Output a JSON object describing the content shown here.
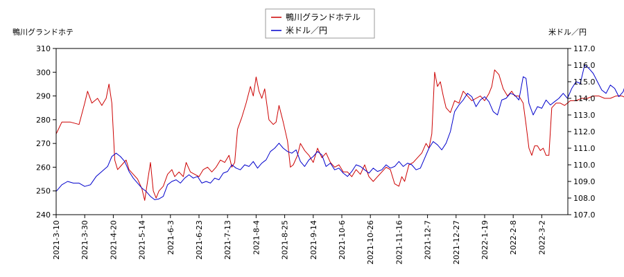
{
  "chart_data": {
    "type": "line",
    "legend_position": "top-center",
    "grid": false,
    "x_ticks": [
      "2021-3-10",
      "2021-3-30",
      "2021-4-20",
      "2021-5-14",
      "2021-6-3",
      "2021-6-23",
      "2021-7-13",
      "2021-8-4",
      "2021-8-25",
      "2021-9-14",
      "2021-10-6",
      "2021-10-26",
      "2021-11-16",
      "2021-12-7",
      "2021-12-27",
      "2022-1-19",
      "2022-2-8",
      "2022-3-2"
    ],
    "left_axis": {
      "label": "鴨川グランドホテ",
      "ylim": [
        240,
        310
      ],
      "ticks": [
        240,
        250,
        260,
        270,
        280,
        290,
        300,
        310
      ]
    },
    "right_axis": {
      "label": "米ドル／円",
      "ylim": [
        107.0,
        117.0
      ],
      "ticks": [
        "107.0",
        "108.0",
        "109.0",
        "110.0",
        "111.0",
        "112.0",
        "113.0",
        "114.0",
        "115.0",
        "116.0",
        "117.0"
      ]
    },
    "series": [
      {
        "name": "鴨川グランドホテル",
        "color": "#cc0000",
        "axis": "left",
        "values": [
          [
            0,
            274
          ],
          [
            0.2,
            279
          ],
          [
            0.5,
            279
          ],
          [
            0.8,
            278
          ],
          [
            1.0,
            287
          ],
          [
            1.1,
            292
          ],
          [
            1.25,
            287
          ],
          [
            1.45,
            289
          ],
          [
            1.6,
            286
          ],
          [
            1.75,
            289
          ],
          [
            1.85,
            295
          ],
          [
            1.95,
            287
          ],
          [
            2.05,
            263
          ],
          [
            2.15,
            259
          ],
          [
            2.3,
            261
          ],
          [
            2.45,
            263
          ],
          [
            2.55,
            259
          ],
          [
            2.7,
            257
          ],
          [
            2.85,
            255
          ],
          [
            3.0,
            251
          ],
          [
            3.1,
            246
          ],
          [
            3.2,
            254
          ],
          [
            3.3,
            262
          ],
          [
            3.4,
            250
          ],
          [
            3.5,
            247
          ],
          [
            3.6,
            250
          ],
          [
            3.75,
            252
          ],
          [
            3.9,
            257
          ],
          [
            4.05,
            259
          ],
          [
            4.15,
            256
          ],
          [
            4.3,
            258
          ],
          [
            4.45,
            256
          ],
          [
            4.55,
            262
          ],
          [
            4.7,
            258
          ],
          [
            4.85,
            257
          ],
          [
            5.0,
            256
          ],
          [
            5.15,
            259
          ],
          [
            5.3,
            260
          ],
          [
            5.45,
            258
          ],
          [
            5.6,
            260
          ],
          [
            5.75,
            263
          ],
          [
            5.9,
            262
          ],
          [
            6.05,
            265
          ],
          [
            6.15,
            260
          ],
          [
            6.25,
            262
          ],
          [
            6.35,
            276
          ],
          [
            6.5,
            281
          ],
          [
            6.65,
            287
          ],
          [
            6.8,
            294
          ],
          [
            6.9,
            290
          ],
          [
            7.0,
            298
          ],
          [
            7.1,
            292
          ],
          [
            7.2,
            289
          ],
          [
            7.3,
            293
          ],
          [
            7.45,
            280
          ],
          [
            7.6,
            278
          ],
          [
            7.7,
            279
          ],
          [
            7.8,
            286
          ],
          [
            7.95,
            279
          ],
          [
            8.1,
            271
          ],
          [
            8.2,
            260
          ],
          [
            8.3,
            261
          ],
          [
            8.45,
            265
          ],
          [
            8.55,
            270
          ],
          [
            8.7,
            267
          ],
          [
            8.85,
            265
          ],
          [
            9.0,
            262
          ],
          [
            9.15,
            268
          ],
          [
            9.3,
            264
          ],
          [
            9.45,
            266
          ],
          [
            9.6,
            262
          ],
          [
            9.75,
            260
          ],
          [
            9.9,
            261
          ],
          [
            10.05,
            258
          ],
          [
            10.2,
            258
          ],
          [
            10.35,
            256
          ],
          [
            10.5,
            259
          ],
          [
            10.65,
            257
          ],
          [
            10.8,
            261
          ],
          [
            10.95,
            256
          ],
          [
            11.1,
            254
          ],
          [
            11.25,
            256
          ],
          [
            11.4,
            258
          ],
          [
            11.55,
            260
          ],
          [
            11.7,
            259
          ],
          [
            11.85,
            253
          ],
          [
            12.0,
            252
          ],
          [
            12.1,
            256
          ],
          [
            12.2,
            254
          ],
          [
            12.35,
            261
          ],
          [
            12.5,
            262
          ],
          [
            12.65,
            264
          ],
          [
            12.8,
            266
          ],
          [
            12.95,
            270
          ],
          [
            13.05,
            268
          ],
          [
            13.15,
            274
          ],
          [
            13.25,
            300
          ],
          [
            13.35,
            294
          ],
          [
            13.45,
            296
          ],
          [
            13.55,
            290
          ],
          [
            13.65,
            285
          ],
          [
            13.8,
            283
          ],
          [
            13.95,
            288
          ],
          [
            14.1,
            287
          ],
          [
            14.25,
            292
          ],
          [
            14.4,
            290
          ],
          [
            14.55,
            288
          ],
          [
            14.7,
            289
          ],
          [
            14.85,
            290
          ],
          [
            15.0,
            288
          ],
          [
            15.15,
            291
          ],
          [
            15.25,
            294
          ],
          [
            15.35,
            301
          ],
          [
            15.5,
            299
          ],
          [
            15.65,
            293
          ],
          [
            15.8,
            290
          ],
          [
            15.95,
            292
          ],
          [
            16.05,
            290
          ],
          [
            16.2,
            290
          ],
          [
            16.35,
            287
          ],
          [
            16.45,
            278
          ],
          [
            16.55,
            268
          ],
          [
            16.65,
            265
          ],
          [
            16.75,
            269
          ],
          [
            16.85,
            269
          ],
          [
            16.95,
            267
          ],
          [
            17.05,
            268
          ],
          [
            17.15,
            265
          ],
          [
            17.25,
            265
          ],
          [
            17.35,
            285
          ],
          [
            17.5,
            287
          ],
          [
            17.65,
            287
          ],
          [
            17.8,
            286
          ],
          [
            18.0,
            288
          ],
          [
            18.2,
            288
          ],
          [
            18.4,
            289
          ],
          [
            18.6,
            289
          ],
          [
            18.8,
            290
          ],
          [
            19.0,
            290
          ],
          [
            19.2,
            289
          ],
          [
            19.4,
            289
          ],
          [
            19.6,
            290
          ],
          [
            19.8,
            290
          ],
          [
            20.0,
            289
          ],
          [
            20.2,
            290
          ],
          [
            20.4,
            289
          ],
          [
            20.6,
            287
          ],
          [
            20.8,
            288
          ],
          [
            21.0,
            287
          ],
          [
            21.2,
            287
          ],
          [
            21.35,
            288
          ]
        ]
      },
      {
        "name": "米ドル／円",
        "color": "#0000cc",
        "axis": "right",
        "values": [
          [
            0,
            108.4
          ],
          [
            0.2,
            108.8
          ],
          [
            0.4,
            109.0
          ],
          [
            0.6,
            108.9
          ],
          [
            0.8,
            108.9
          ],
          [
            1.0,
            108.7
          ],
          [
            1.2,
            108.8
          ],
          [
            1.4,
            109.3
          ],
          [
            1.6,
            109.6
          ],
          [
            1.8,
            109.9
          ],
          [
            1.95,
            110.5
          ],
          [
            2.1,
            110.7
          ],
          [
            2.25,
            110.5
          ],
          [
            2.4,
            110.2
          ],
          [
            2.55,
            109.6
          ],
          [
            2.7,
            109.2
          ],
          [
            2.85,
            108.9
          ],
          [
            3.0,
            108.6
          ],
          [
            3.15,
            108.4
          ],
          [
            3.3,
            108.1
          ],
          [
            3.45,
            107.9
          ],
          [
            3.6,
            107.95
          ],
          [
            3.75,
            108.1
          ],
          [
            3.9,
            108.8
          ],
          [
            4.05,
            109.0
          ],
          [
            4.2,
            109.1
          ],
          [
            4.35,
            108.9
          ],
          [
            4.5,
            109.2
          ],
          [
            4.65,
            109.4
          ],
          [
            4.8,
            109.2
          ],
          [
            4.95,
            109.3
          ],
          [
            5.1,
            108.9
          ],
          [
            5.25,
            109.0
          ],
          [
            5.4,
            108.9
          ],
          [
            5.55,
            109.2
          ],
          [
            5.7,
            109.1
          ],
          [
            5.85,
            109.5
          ],
          [
            6.0,
            109.6
          ],
          [
            6.15,
            110.0
          ],
          [
            6.3,
            109.8
          ],
          [
            6.45,
            109.7
          ],
          [
            6.6,
            110.0
          ],
          [
            6.75,
            109.9
          ],
          [
            6.9,
            110.2
          ],
          [
            7.05,
            109.8
          ],
          [
            7.2,
            110.1
          ],
          [
            7.35,
            110.3
          ],
          [
            7.5,
            110.8
          ],
          [
            7.65,
            111.0
          ],
          [
            7.8,
            111.3
          ],
          [
            7.95,
            111.0
          ],
          [
            8.1,
            110.8
          ],
          [
            8.25,
            110.7
          ],
          [
            8.4,
            110.9
          ],
          [
            8.55,
            110.2
          ],
          [
            8.7,
            109.9
          ],
          [
            8.85,
            110.3
          ],
          [
            9.0,
            110.5
          ],
          [
            9.15,
            110.8
          ],
          [
            9.3,
            110.6
          ],
          [
            9.45,
            109.9
          ],
          [
            9.6,
            110.1
          ],
          [
            9.75,
            109.7
          ],
          [
            9.9,
            109.8
          ],
          [
            10.05,
            109.5
          ],
          [
            10.2,
            109.3
          ],
          [
            10.35,
            109.6
          ],
          [
            10.5,
            110.0
          ],
          [
            10.65,
            109.9
          ],
          [
            10.8,
            109.7
          ],
          [
            10.95,
            109.5
          ],
          [
            11.1,
            109.8
          ],
          [
            11.25,
            109.6
          ],
          [
            11.4,
            109.7
          ],
          [
            11.55,
            110.0
          ],
          [
            11.7,
            109.8
          ],
          [
            11.85,
            109.9
          ],
          [
            12.0,
            110.2
          ],
          [
            12.15,
            109.9
          ],
          [
            12.3,
            110.1
          ],
          [
            12.45,
            110.0
          ],
          [
            12.6,
            109.7
          ],
          [
            12.75,
            109.8
          ],
          [
            12.9,
            110.4
          ],
          [
            13.05,
            111.0
          ],
          [
            13.2,
            111.4
          ],
          [
            13.35,
            111.2
          ],
          [
            13.5,
            110.9
          ],
          [
            13.65,
            111.3
          ],
          [
            13.8,
            112.0
          ],
          [
            13.95,
            113.2
          ],
          [
            14.1,
            113.6
          ],
          [
            14.25,
            113.9
          ],
          [
            14.4,
            114.3
          ],
          [
            14.55,
            114.1
          ],
          [
            14.7,
            113.5
          ],
          [
            14.85,
            113.9
          ],
          [
            15.0,
            114.1
          ],
          [
            15.15,
            113.8
          ],
          [
            15.3,
            113.2
          ],
          [
            15.45,
            113.0
          ],
          [
            15.6,
            113.9
          ],
          [
            15.75,
            114.0
          ],
          [
            15.9,
            114.3
          ],
          [
            16.05,
            114.2
          ],
          [
            16.2,
            113.9
          ],
          [
            16.35,
            115.3
          ],
          [
            16.45,
            115.2
          ],
          [
            16.55,
            113.7
          ],
          [
            16.7,
            113.0
          ],
          [
            16.85,
            113.5
          ],
          [
            17.0,
            113.4
          ],
          [
            17.15,
            113.9
          ],
          [
            17.3,
            113.6
          ],
          [
            17.45,
            113.8
          ],
          [
            17.6,
            114.0
          ],
          [
            17.75,
            114.3
          ],
          [
            17.9,
            114.0
          ],
          [
            18.05,
            114.6
          ],
          [
            18.2,
            115.0
          ],
          [
            18.35,
            114.9
          ],
          [
            18.5,
            116.0
          ],
          [
            18.65,
            115.8
          ],
          [
            18.8,
            115.5
          ],
          [
            18.95,
            115.0
          ],
          [
            19.1,
            114.5
          ],
          [
            19.25,
            114.3
          ],
          [
            19.4,
            114.8
          ],
          [
            19.55,
            114.6
          ],
          [
            19.7,
            114.1
          ],
          [
            19.85,
            114.4
          ],
          [
            20.0,
            115.2
          ],
          [
            20.15,
            114.9
          ],
          [
            20.3,
            114.7
          ],
          [
            20.45,
            115.3
          ],
          [
            20.6,
            115.6
          ],
          [
            20.75,
            115.8
          ],
          [
            20.9,
            115.5
          ],
          [
            21.05,
            115.1
          ],
          [
            21.2,
            115.4
          ],
          [
            21.35,
            116.0
          ]
        ]
      }
    ]
  }
}
